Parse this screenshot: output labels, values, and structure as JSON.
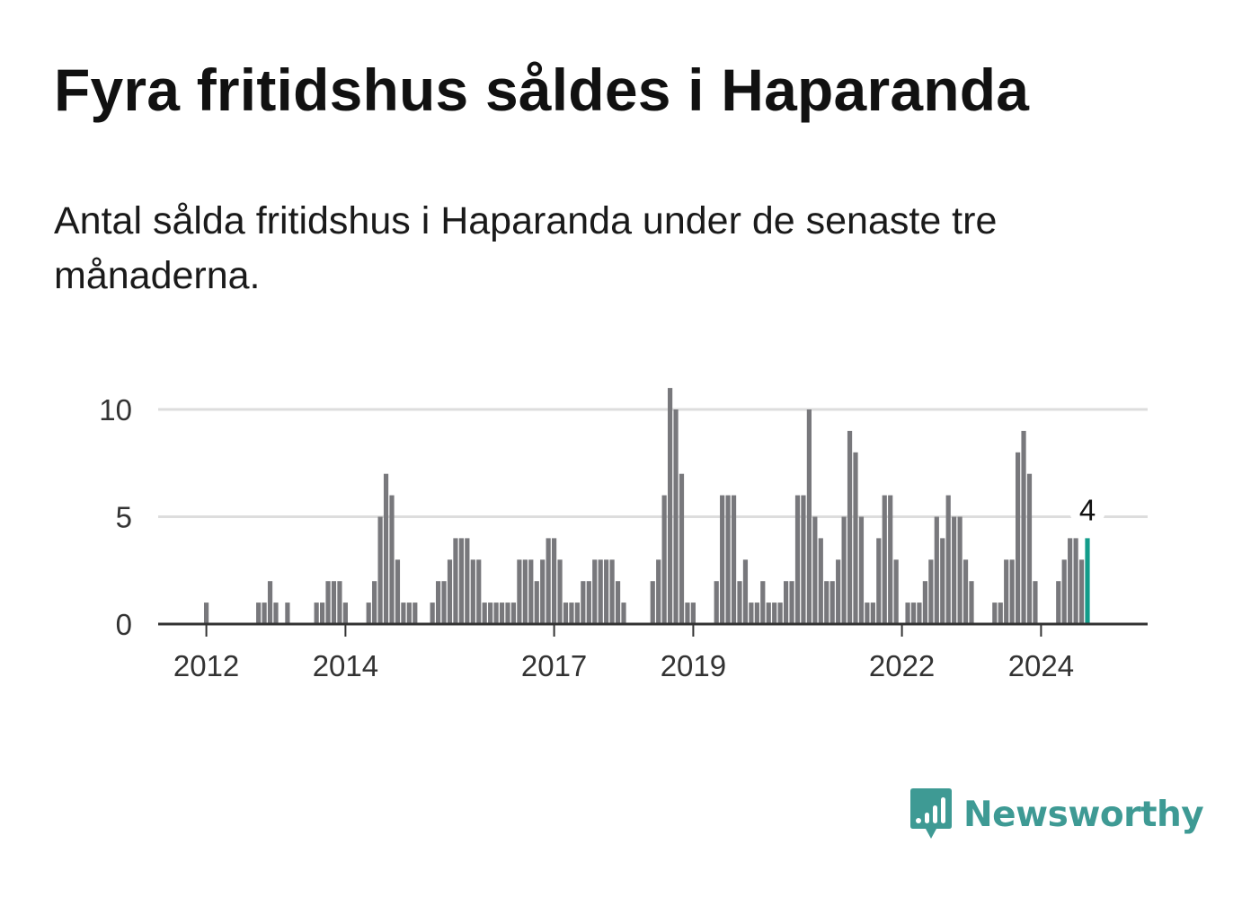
{
  "title": "Fyra fritidshus såldes i Haparanda",
  "subtitle": "Antal sålda fritidshus i Haparanda under de senaste tre månaderna.",
  "brand": {
    "name": "Newsworthy",
    "logo_icon": "bar-chart-speech-bubble-icon"
  },
  "colors": {
    "bar": "#78787c",
    "highlight": "#139c8a",
    "grid": "#dddddd",
    "axis": "#333333",
    "brand": "#3e9a94"
  },
  "chart_data": {
    "type": "bar",
    "title": "Fyra fritidshus såldes i Haparanda",
    "xlabel": "",
    "ylabel": "",
    "ylim": [
      0,
      11
    ],
    "yticks": [
      0,
      5,
      10
    ],
    "grid": true,
    "start": "2011-12",
    "x_tick_labels": [
      {
        "label": "2012",
        "month_index": 0
      },
      {
        "label": "2014",
        "month_index": 24
      },
      {
        "label": "2017",
        "month_index": 60
      },
      {
        "label": "2019",
        "month_index": 84
      },
      {
        "label": "2022",
        "month_index": 120
      },
      {
        "label": "2024",
        "month_index": 144
      }
    ],
    "values": [
      1,
      0,
      0,
      0,
      0,
      0,
      0,
      0,
      0,
      1,
      1,
      2,
      1,
      0,
      1,
      0,
      0,
      0,
      0,
      1,
      1,
      2,
      2,
      2,
      1,
      0,
      0,
      0,
      1,
      2,
      5,
      7,
      6,
      3,
      1,
      1,
      1,
      0,
      0,
      1,
      2,
      2,
      3,
      4,
      4,
      4,
      3,
      3,
      1,
      1,
      1,
      1,
      1,
      1,
      3,
      3,
      3,
      2,
      3,
      4,
      4,
      3,
      1,
      1,
      1,
      2,
      2,
      3,
      3,
      3,
      3,
      2,
      1,
      0,
      0,
      0,
      0,
      2,
      3,
      6,
      11,
      10,
      7,
      1,
      1,
      0,
      0,
      0,
      2,
      6,
      6,
      6,
      2,
      3,
      1,
      1,
      2,
      1,
      1,
      1,
      2,
      2,
      6,
      6,
      10,
      5,
      4,
      2,
      2,
      3,
      5,
      9,
      8,
      5,
      1,
      1,
      4,
      6,
      6,
      3,
      0,
      1,
      1,
      1,
      2,
      3,
      5,
      4,
      6,
      5,
      5,
      3,
      2,
      0,
      0,
      0,
      1,
      1,
      3,
      3,
      8,
      9,
      7,
      2,
      0,
      0,
      0,
      2,
      3,
      4,
      4,
      3,
      4
    ],
    "highlight_index": 152,
    "annotation": {
      "index": 152,
      "label": "4"
    }
  }
}
